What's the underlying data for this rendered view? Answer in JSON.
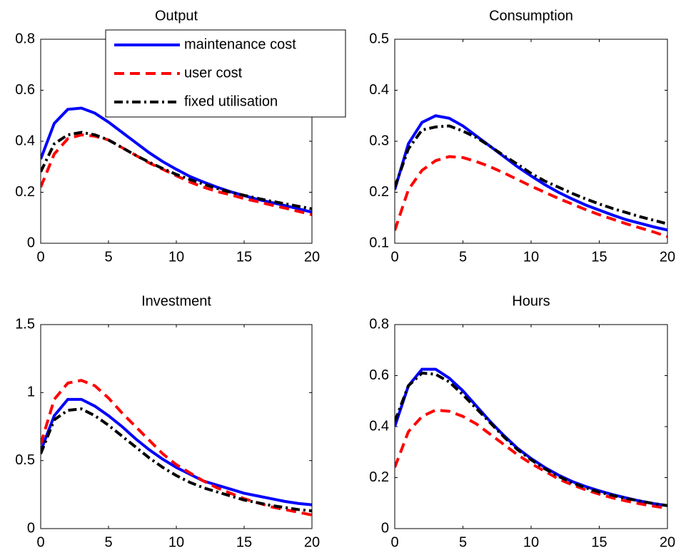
{
  "chart_data": [
    {
      "type": "line",
      "title": "Output",
      "x": [
        0,
        1,
        2,
        3,
        4,
        5,
        6,
        7,
        8,
        9,
        10,
        11,
        12,
        13,
        14,
        15,
        16,
        17,
        18,
        19,
        20
      ],
      "xlim": [
        0,
        20
      ],
      "xticks": [
        0,
        5,
        10,
        15,
        20
      ],
      "ylim": [
        0,
        0.8
      ],
      "yticks": [
        0,
        0.2,
        0.4,
        0.6,
        0.8
      ],
      "grid": false,
      "legend": "upper right",
      "series": [
        {
          "name": "maintenance cost",
          "color": "#0000ff",
          "dash": "solid",
          "values": [
            0.33,
            0.47,
            0.525,
            0.53,
            0.51,
            0.475,
            0.435,
            0.395,
            0.355,
            0.32,
            0.29,
            0.262,
            0.24,
            0.22,
            0.202,
            0.187,
            0.172,
            0.16,
            0.148,
            0.135,
            0.122
          ]
        },
        {
          "name": "user cost",
          "color": "#ff0000",
          "dash": "dashed",
          "values": [
            0.22,
            0.35,
            0.41,
            0.425,
            0.42,
            0.405,
            0.375,
            0.345,
            0.315,
            0.29,
            0.265,
            0.24,
            0.22,
            0.203,
            0.19,
            0.175,
            0.163,
            0.15,
            0.138,
            0.125,
            0.112
          ]
        },
        {
          "name": "fixed utilisation",
          "color": "#000000",
          "dash": "dashdot",
          "values": [
            0.28,
            0.39,
            0.425,
            0.435,
            0.425,
            0.405,
            0.375,
            0.345,
            0.318,
            0.293,
            0.27,
            0.25,
            0.232,
            0.215,
            0.2,
            0.188,
            0.176,
            0.165,
            0.155,
            0.145,
            0.135
          ]
        }
      ]
    },
    {
      "type": "line",
      "title": "Consumption",
      "x": [
        0,
        1,
        2,
        3,
        4,
        5,
        6,
        7,
        8,
        9,
        10,
        11,
        12,
        13,
        14,
        15,
        16,
        17,
        18,
        19,
        20
      ],
      "xlim": [
        0,
        20
      ],
      "xticks": [
        0,
        5,
        10,
        15,
        20
      ],
      "ylim": [
        0.1,
        0.5
      ],
      "yticks": [
        0.1,
        0.2,
        0.3,
        0.4,
        0.5
      ],
      "grid": false,
      "series": [
        {
          "color": "#0000ff",
          "dash": "solid",
          "values": [
            0.205,
            0.295,
            0.337,
            0.35,
            0.345,
            0.33,
            0.31,
            0.29,
            0.27,
            0.25,
            0.232,
            0.215,
            0.2,
            0.187,
            0.175,
            0.165,
            0.155,
            0.146,
            0.139,
            0.132,
            0.126
          ]
        },
        {
          "color": "#ff0000",
          "dash": "dashed",
          "values": [
            0.125,
            0.205,
            0.243,
            0.262,
            0.27,
            0.268,
            0.26,
            0.25,
            0.238,
            0.225,
            0.212,
            0.2,
            0.188,
            0.177,
            0.166,
            0.156,
            0.147,
            0.138,
            0.13,
            0.122,
            0.113
          ]
        },
        {
          "color": "#000000",
          "dash": "dashdot",
          "values": [
            0.21,
            0.285,
            0.322,
            0.328,
            0.33,
            0.32,
            0.307,
            0.29,
            0.272,
            0.255,
            0.237,
            0.222,
            0.21,
            0.198,
            0.187,
            0.177,
            0.168,
            0.16,
            0.152,
            0.145,
            0.138
          ]
        }
      ]
    },
    {
      "type": "line",
      "title": "Investment",
      "x": [
        0,
        1,
        2,
        3,
        4,
        5,
        6,
        7,
        8,
        9,
        10,
        11,
        12,
        13,
        14,
        15,
        16,
        17,
        18,
        19,
        20
      ],
      "xlim": [
        0,
        20
      ],
      "xticks": [
        0,
        5,
        10,
        15,
        20
      ],
      "ylim": [
        0,
        1.5
      ],
      "yticks": [
        0,
        0.5,
        1,
        1.5
      ],
      "grid": false,
      "series": [
        {
          "color": "#0000ff",
          "dash": "solid",
          "values": [
            0.57,
            0.83,
            0.95,
            0.95,
            0.9,
            0.83,
            0.75,
            0.66,
            0.58,
            0.51,
            0.45,
            0.4,
            0.35,
            0.32,
            0.29,
            0.26,
            0.24,
            0.22,
            0.2,
            0.185,
            0.175
          ]
        },
        {
          "color": "#ff0000",
          "dash": "dashed",
          "values": [
            0.62,
            0.95,
            1.07,
            1.09,
            1.05,
            0.96,
            0.85,
            0.75,
            0.65,
            0.55,
            0.47,
            0.41,
            0.35,
            0.3,
            0.26,
            0.22,
            0.19,
            0.16,
            0.14,
            0.12,
            0.1
          ]
        },
        {
          "color": "#000000",
          "dash": "dashdot",
          "values": [
            0.55,
            0.8,
            0.87,
            0.88,
            0.83,
            0.76,
            0.68,
            0.6,
            0.52,
            0.45,
            0.39,
            0.34,
            0.3,
            0.27,
            0.24,
            0.21,
            0.19,
            0.17,
            0.155,
            0.14,
            0.13
          ]
        }
      ]
    },
    {
      "type": "line",
      "title": "Hours",
      "x": [
        0,
        1,
        2,
        3,
        4,
        5,
        6,
        7,
        8,
        9,
        10,
        11,
        12,
        13,
        14,
        15,
        16,
        17,
        18,
        19,
        20
      ],
      "xlim": [
        0,
        20
      ],
      "xticks": [
        0,
        5,
        10,
        15,
        20
      ],
      "ylim": [
        0,
        0.8
      ],
      "yticks": [
        0,
        0.2,
        0.4,
        0.6,
        0.8
      ],
      "grid": false,
      "series": [
        {
          "color": "#0000ff",
          "dash": "solid",
          "values": [
            0.4,
            0.56,
            0.625,
            0.625,
            0.59,
            0.54,
            0.48,
            0.42,
            0.365,
            0.315,
            0.275,
            0.24,
            0.21,
            0.185,
            0.165,
            0.148,
            0.133,
            0.12,
            0.108,
            0.098,
            0.09
          ]
        },
        {
          "color": "#ff0000",
          "dash": "dashed",
          "values": [
            0.24,
            0.38,
            0.44,
            0.465,
            0.46,
            0.44,
            0.41,
            0.37,
            0.33,
            0.29,
            0.255,
            0.225,
            0.195,
            0.172,
            0.152,
            0.135,
            0.12,
            0.108,
            0.097,
            0.088,
            0.08
          ]
        },
        {
          "color": "#000000",
          "dash": "dashdot",
          "values": [
            0.42,
            0.56,
            0.61,
            0.605,
            0.575,
            0.525,
            0.47,
            0.415,
            0.36,
            0.31,
            0.27,
            0.235,
            0.205,
            0.18,
            0.16,
            0.143,
            0.13,
            0.118,
            0.108,
            0.098,
            0.09
          ]
        }
      ]
    }
  ]
}
